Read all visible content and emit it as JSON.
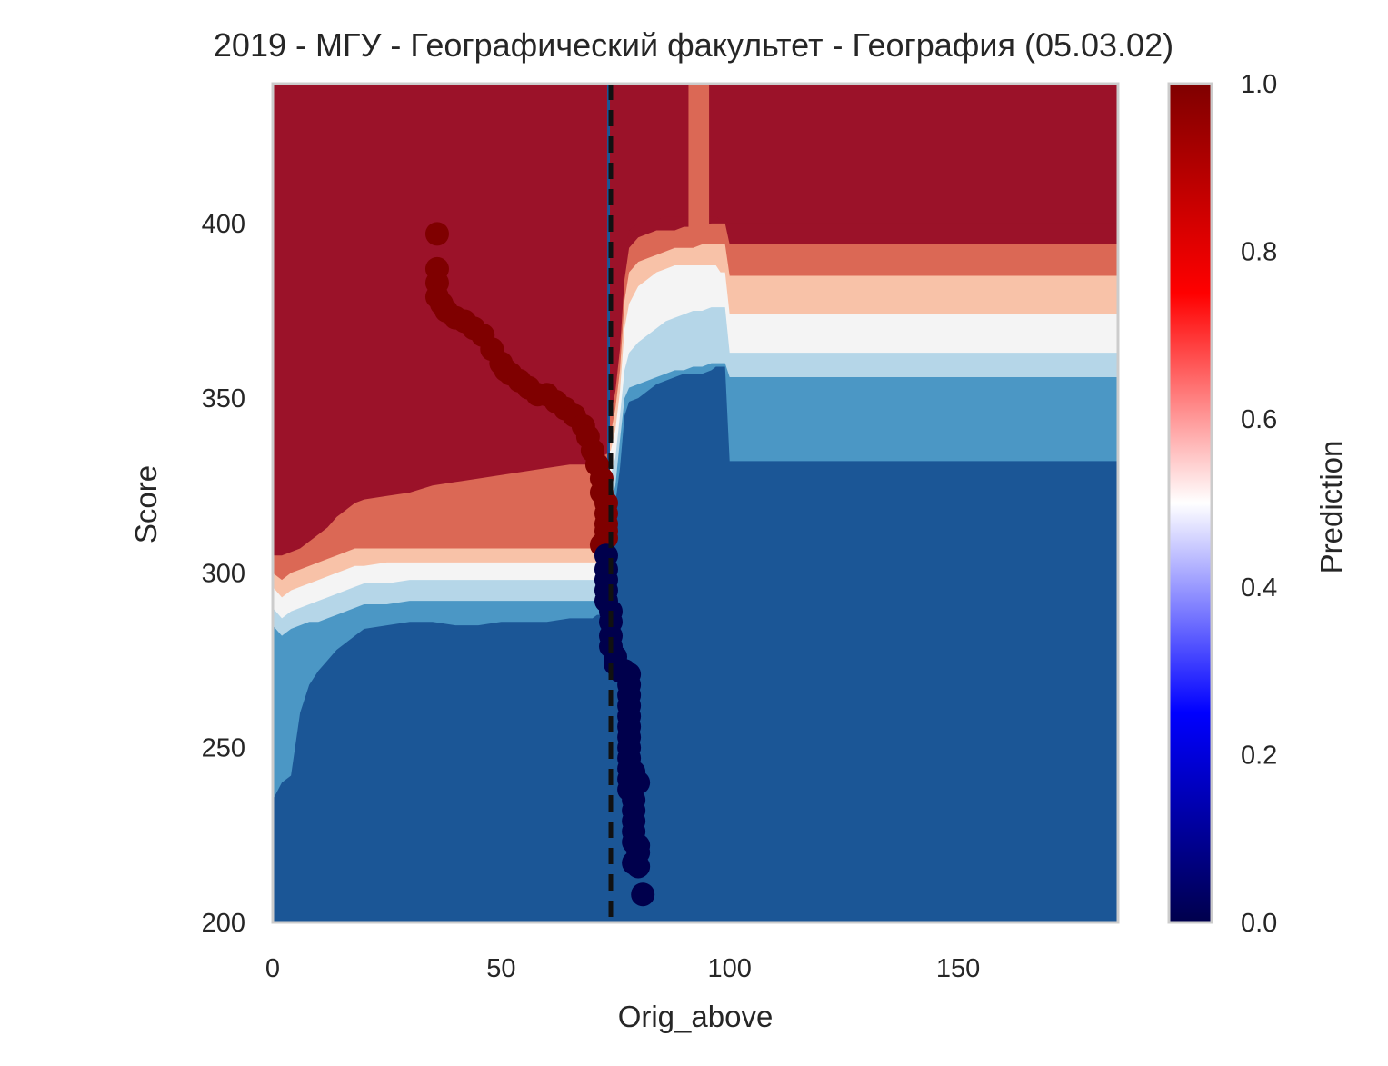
{
  "chart_data": {
    "type": "heatmap",
    "title": "2019 - МГУ - Географический факультет - География (05.03.02)",
    "xlabel": "Orig_above",
    "ylabel": "Score",
    "xlim": [
      0,
      185
    ],
    "ylim": [
      200,
      440
    ],
    "x_ticks": [
      "0",
      "50",
      "100",
      "150"
    ],
    "y_ticks": [
      "200",
      "250",
      "300",
      "350",
      "400"
    ],
    "grid": false,
    "colorbar": {
      "label": "Prediction",
      "range": [
        0,
        1
      ],
      "ticks": [
        "0.0",
        "0.2",
        "0.4",
        "0.6",
        "0.8",
        "1.0"
      ],
      "colormap": "seismic",
      "colors": [
        "#00004c",
        "#0000ff",
        "#ffffff",
        "#ff0000",
        "#7f0000"
      ]
    },
    "contour_levels": [
      {
        "range": [
          0.0,
          0.125
        ],
        "color": "#1b5696"
      },
      {
        "range": [
          0.125,
          0.25
        ],
        "color": "#4b97c5"
      },
      {
        "range": [
          0.25,
          0.375
        ],
        "color": "#b5d6e8"
      },
      {
        "range": [
          0.375,
          0.625
        ],
        "color": "#f4f4f4"
      },
      {
        "range": [
          0.625,
          0.75
        ],
        "color": "#f8c2a8"
      },
      {
        "range": [
          0.75,
          0.875
        ],
        "color": "#db6855"
      },
      {
        "range": [
          0.875,
          1.0
        ],
        "color": "#9b1229"
      }
    ],
    "boundaries": {
      "left": {
        "x": [
          0,
          2,
          4,
          6,
          8,
          10,
          12,
          14,
          16,
          18,
          20,
          25,
          30,
          35,
          40,
          45,
          50,
          55,
          60,
          65,
          70,
          71,
          72,
          73
        ],
        "b1": [
          235,
          240,
          242,
          260,
          268,
          272,
          275,
          278,
          280,
          282,
          284,
          285,
          286,
          286,
          285,
          285,
          286,
          286,
          286,
          287,
          287,
          288,
          288,
          289
        ],
        "b2": [
          285,
          282,
          284,
          285,
          286,
          286,
          287,
          288,
          289,
          290,
          291,
          291,
          292,
          292,
          292,
          292,
          292,
          292,
          292,
          292,
          292,
          292,
          292,
          292
        ],
        "b3": [
          290,
          287,
          289,
          290,
          291,
          292,
          293,
          294,
          295,
          296,
          297,
          297,
          298,
          298,
          298,
          298,
          298,
          298,
          298,
          298,
          298,
          298,
          298,
          298
        ],
        "b4": [
          296,
          293,
          295,
          296,
          297,
          298,
          299,
          300,
          301,
          302,
          302,
          303,
          303,
          303,
          303,
          303,
          303,
          303,
          303,
          303,
          303,
          303,
          303,
          303
        ],
        "b5": [
          300,
          298,
          300,
          301,
          302,
          303,
          304,
          305,
          306,
          307,
          307,
          307,
          307,
          307,
          307,
          307,
          307,
          307,
          307,
          307,
          307,
          307,
          307,
          307
        ],
        "b6": [
          305,
          305,
          306,
          307,
          309,
          311,
          313,
          316,
          318,
          320,
          321,
          322,
          323,
          325,
          326,
          327,
          328,
          329,
          330,
          331,
          331,
          332,
          333,
          334
        ]
      },
      "right": {
        "x": [
          74,
          75,
          76,
          77,
          78,
          80,
          82,
          84,
          86,
          88,
          90,
          92,
          94,
          96,
          97,
          98,
          99,
          100,
          105,
          109,
          110,
          120,
          130,
          140,
          150,
          160,
          170,
          180,
          185
        ],
        "b1": [
          315,
          320,
          330,
          345,
          349,
          350,
          352,
          354,
          355,
          356,
          357,
          357,
          357,
          358,
          359,
          359,
          359,
          332,
          332,
          332,
          332,
          332,
          332,
          332,
          332,
          332,
          332,
          332,
          332
        ],
        "b2": [
          320,
          325,
          338,
          350,
          353,
          354,
          355,
          356,
          357,
          358,
          358,
          359,
          359,
          360,
          360,
          360,
          360,
          356,
          356,
          356,
          356,
          356,
          356,
          356,
          356,
          356,
          356,
          356,
          356
        ],
        "b3": [
          328,
          333,
          345,
          358,
          363,
          366,
          368,
          370,
          372,
          373,
          374,
          375,
          375,
          376,
          376,
          376,
          376,
          363,
          363,
          363,
          363,
          363,
          363,
          363,
          363,
          363,
          363,
          363,
          363
        ],
        "b4": [
          335,
          341,
          352,
          370,
          377,
          382,
          384,
          386,
          387,
          388,
          388,
          388,
          388,
          388,
          388,
          386,
          386,
          374,
          374,
          374,
          374,
          374,
          374,
          374,
          374,
          374,
          374,
          374,
          374
        ],
        "b5": [
          340,
          347,
          358,
          378,
          386,
          389,
          390,
          391,
          392,
          393,
          393,
          393,
          394,
          394,
          394,
          394,
          394,
          385,
          385,
          385,
          385,
          385,
          385,
          385,
          385,
          385,
          385,
          385,
          385
        ],
        "b6": [
          345,
          352,
          364,
          384,
          393,
          396,
          397,
          398,
          398,
          398,
          399,
          399,
          399,
          400,
          400,
          400,
          400,
          394,
          394,
          394,
          394,
          394,
          394,
          394,
          394,
          394,
          394,
          394,
          394
        ],
        "b7": [
          350,
          356,
          370,
          390,
          398,
          400,
          401,
          401,
          402,
          402,
          402,
          402,
          402,
          402,
          402,
          401,
          401,
          400,
          400,
          400,
          400,
          400,
          400,
          400,
          400,
          400,
          400,
          400,
          400
        ]
      },
      "spike": {
        "x0": 91,
        "x1": 95.5,
        "color": "#db6855"
      }
    },
    "threshold_line": {
      "x": 74,
      "style": "dashed",
      "color": "#111111"
    },
    "series": [
      {
        "type": "scatter",
        "x": [
          36,
          36,
          36,
          36,
          37,
          38,
          40,
          42,
          44,
          46,
          48,
          50,
          51,
          52,
          54,
          56,
          58,
          60,
          62,
          64,
          66,
          68,
          69,
          70,
          71,
          72,
          72,
          73,
          73,
          73,
          73,
          73,
          72
        ],
        "y": [
          397,
          387,
          383,
          379,
          377,
          375,
          373,
          372,
          370,
          368,
          364,
          360,
          358,
          357,
          355,
          353,
          351,
          351,
          349,
          347,
          345,
          342,
          339,
          335,
          331,
          327,
          323,
          320,
          317,
          314,
          312,
          310,
          308
        ],
        "values": [
          0.95,
          0.95,
          0.95,
          0.95,
          0.95,
          0.95,
          0.95,
          0.95,
          0.95,
          0.95,
          0.95,
          0.95,
          0.95,
          0.95,
          0.95,
          0.95,
          0.95,
          0.95,
          0.95,
          0.95,
          0.95,
          0.95,
          0.95,
          0.95,
          0.95,
          0.95,
          0.95,
          0.95,
          0.95,
          0.95,
          0.95,
          0.95,
          0.95
        ],
        "color": "#7f0000"
      },
      {
        "type": "scatter",
        "x": [
          73,
          73,
          73,
          73,
          73,
          74,
          74,
          74,
          74,
          75,
          75,
          76,
          77,
          78,
          78,
          78,
          78,
          78,
          78,
          78,
          78,
          78,
          78,
          78,
          78,
          79,
          79,
          79,
          79,
          79,
          80,
          79,
          79,
          80,
          80,
          80,
          81
        ],
        "y": [
          305,
          301,
          298,
          295,
          292,
          289,
          286,
          282,
          279,
          276,
          274,
          272,
          272,
          271,
          268,
          265,
          262,
          259,
          256,
          253,
          250,
          247,
          244,
          241,
          238,
          235,
          232,
          229,
          226,
          223,
          220,
          217,
          243,
          240,
          222,
          216,
          208
        ],
        "values": [
          0.02,
          0.02,
          0.02,
          0.02,
          0.02,
          0.02,
          0.02,
          0.02,
          0.02,
          0.02,
          0.02,
          0.02,
          0.02,
          0.02,
          0.02,
          0.02,
          0.02,
          0.02,
          0.02,
          0.02,
          0.02,
          0.02,
          0.02,
          0.02,
          0.02,
          0.02,
          0.02,
          0.02,
          0.02,
          0.02,
          0.02,
          0.02,
          0.02,
          0.02,
          0.02,
          0.02,
          0.02
        ],
        "color": "#00004c"
      }
    ]
  }
}
